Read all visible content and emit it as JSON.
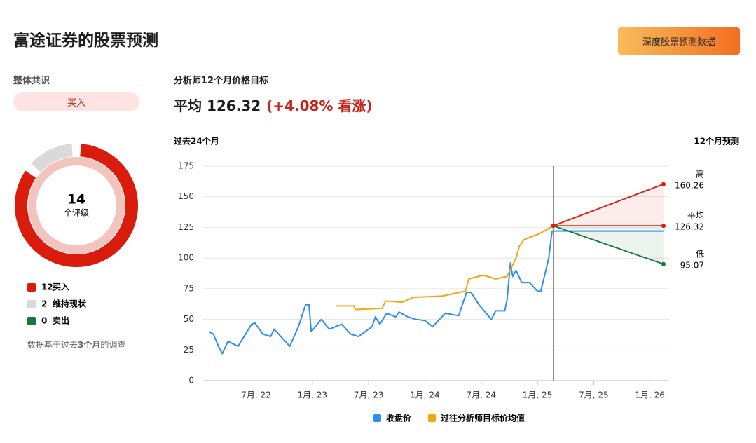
{
  "header": {
    "title": "富途证券的股票预测",
    "button": "深度股票预测数据"
  },
  "consensus": {
    "label": "整体共识",
    "rating": "买入",
    "note_pre": "数据基于过去",
    "note_bold": "3个月",
    "note_post": "的调查"
  },
  "target": {
    "title": "分析师12个月价格目标",
    "avg_label": "平均",
    "change": "(+4.08% 看涨)"
  },
  "chart_data": [
    {
      "type": "pie",
      "center_value": 14,
      "center_label": "个评级",
      "categories": [
        "买入",
        "维持现状",
        "卖出"
      ],
      "values": [
        12,
        2,
        0
      ],
      "colors": [
        "#d91c0b",
        "#d9d9d9",
        "#16793a"
      ]
    },
    {
      "type": "line",
      "left_title": "过去24个月",
      "right_title": "12个月预测",
      "xlim": [
        2022.03,
        2026.17
      ],
      "ylim": [
        0,
        175
      ],
      "yticks": [
        0,
        25,
        50,
        75,
        100,
        125,
        150,
        175
      ],
      "xticks": [
        {
          "value": 2022.5,
          "label": "7月, 22"
        },
        {
          "value": 2023.0,
          "label": "1月, 23"
        },
        {
          "value": 2023.5,
          "label": "7月, 23"
        },
        {
          "value": 2024.0,
          "label": "1月, 24"
        },
        {
          "value": 2024.5,
          "label": "7月, 24"
        },
        {
          "value": 2025.0,
          "label": "1月, 25"
        },
        {
          "value": 2025.5,
          "label": "7月, 25"
        },
        {
          "value": 2026.0,
          "label": "1月, 26"
        }
      ],
      "grid": true,
      "series": [
        {
          "name": "收盘价",
          "color": "#2d8ff0",
          "x": [
            2022.08,
            2022.12,
            2022.17,
            2022.2,
            2022.25,
            2022.34,
            2022.46,
            2022.49,
            2022.56,
            2022.63,
            2022.66,
            2022.73,
            2022.8,
            2022.88,
            2022.94,
            2022.97,
            2022.99,
            2023.08,
            2023.15,
            2023.26,
            2023.34,
            2023.41,
            2023.53,
            2023.56,
            2023.6,
            2023.66,
            2023.74,
            2023.77,
            2023.85,
            2023.92,
            2024.0,
            2024.07,
            2024.18,
            2024.3,
            2024.37,
            2024.41,
            2024.48,
            2024.59,
            2024.63,
            2024.71,
            2024.73,
            2024.76,
            2024.78,
            2024.81,
            2024.86,
            2024.93,
            2025.0,
            2025.03,
            2025.08,
            2025.1,
            2025.13,
            2025.14,
            2026.12
          ],
          "values": [
            40,
            38,
            27,
            22,
            32,
            28,
            46,
            47,
            38,
            36,
            42,
            35,
            28,
            45,
            62,
            62,
            40,
            50,
            42,
            46,
            38,
            36,
            44,
            52,
            46,
            55,
            52,
            56,
            52,
            50,
            49,
            44,
            55,
            53,
            72,
            72,
            62,
            50,
            57,
            57,
            66,
            96,
            85,
            90,
            80,
            80,
            73,
            73,
            92,
            100,
            122,
            122,
            122
          ]
        },
        {
          "name": "过往分析师目标价均值",
          "color": "#f5a60f",
          "x": [
            2023.21,
            2023.37,
            2023.38,
            2023.62,
            2023.65,
            2023.8,
            2023.9,
            2024.15,
            2024.36,
            2024.39,
            2024.52,
            2024.63,
            2024.73,
            2024.81,
            2024.84,
            2024.88,
            2025.02,
            2025.14
          ],
          "values": [
            61,
            61,
            58,
            59,
            65,
            64,
            68,
            69,
            73,
            83,
            86,
            83,
            85,
            100,
            110,
            115,
            120,
            126.32
          ]
        }
      ],
      "forecast": [
        {
          "name": "高",
          "color": "#d91c0b",
          "x": [
            2025.14,
            2026.12
          ],
          "values": [
            126.32,
            160.26
          ]
        },
        {
          "name": "平均",
          "color": "#d91c0b",
          "x": [
            2025.14,
            2026.12
          ],
          "values": [
            126.32,
            126.32
          ]
        },
        {
          "name": "低",
          "color": "#16793a",
          "x": [
            2025.14,
            2026.12
          ],
          "values": [
            126.32,
            95.07
          ]
        }
      ]
    }
  ]
}
